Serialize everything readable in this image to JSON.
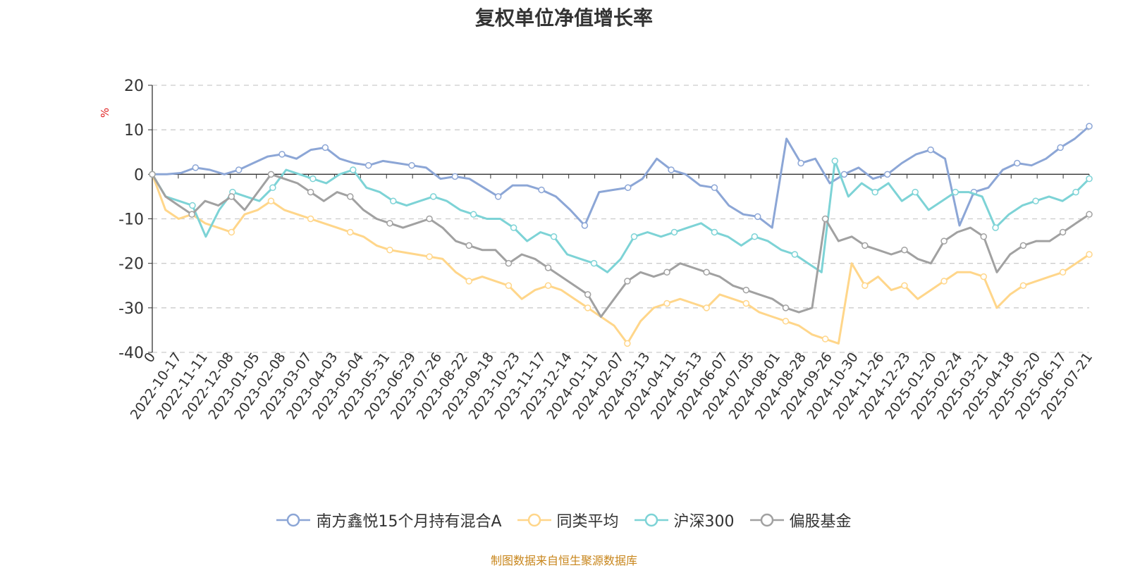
{
  "source_note": "制图数据来自恒生聚源数据库",
  "chart_data": {
    "type": "line",
    "title": "复权单位净值增长率",
    "ylabel": "%",
    "ylim": [
      -40,
      20
    ],
    "yticks": [
      20,
      10,
      0,
      -10,
      -20,
      -30,
      -40
    ],
    "grid": true,
    "legend": "bottom",
    "x_tick_labels": [
      "0",
      "2022-10-17",
      "2022-11-11",
      "2022-12-08",
      "2023-01-05",
      "2023-02-08",
      "2023-03-07",
      "2023-04-03",
      "2023-05-04",
      "2023-05-31",
      "2023-06-29",
      "2023-07-26",
      "2023-08-22",
      "2023-09-18",
      "2023-10-23",
      "2023-11-17",
      "2023-12-14",
      "2024-01-11",
      "2024-02-07",
      "2024-03-13",
      "2024-04-11",
      "2024-05-13",
      "2024-06-07",
      "2024-07-05",
      "2024-08-01",
      "2024-08-28",
      "2024-09-26",
      "2024-10-30",
      "2024-11-26",
      "2024-12-23",
      "2025-01-20",
      "2025-02-24",
      "2025-03-21",
      "2025-04-18",
      "2025-05-20",
      "2025-06-17",
      "2025-07-21"
    ],
    "series": [
      {
        "name": "南方鑫悦15个月持有混合A",
        "color": "#8ca6d6",
        "values": [
          0,
          0,
          0.3,
          1.5,
          1.0,
          0,
          1.0,
          2.5,
          4.0,
          4.5,
          3.5,
          5.5,
          6.0,
          3.5,
          2.5,
          2.0,
          3.0,
          2.5,
          2.0,
          1.5,
          -1.0,
          -0.5,
          -1.0,
          -3.0,
          -5.0,
          -2.5,
          -2.5,
          -3.5,
          -5.0,
          -8.0,
          -11.5,
          -4.0,
          -3.5,
          -3.0,
          -1.0,
          3.5,
          1.0,
          0,
          -2.5,
          -3.0,
          -7.0,
          -9.0,
          -9.5,
          -12.0,
          8.0,
          2.5,
          3.5,
          -2.0,
          0,
          1.5,
          -1.0,
          0,
          2.5,
          4.5,
          5.5,
          3.5,
          -11.5,
          -4.0,
          -3.0,
          1.0,
          2.5,
          2.0,
          3.5,
          6.0,
          8.0,
          10.8
        ]
      },
      {
        "name": "同类平均",
        "color": "#ffd68a",
        "values": [
          0,
          -8,
          -10,
          -9,
          -11,
          -12,
          -13,
          -9,
          -8,
          -6,
          -8,
          -9,
          -10,
          -11,
          -12,
          -13,
          -14,
          -16,
          -17,
          -17.5,
          -18,
          -18.5,
          -19,
          -22,
          -24,
          -23,
          -24,
          -25,
          -28,
          -26,
          -25,
          -26,
          -28,
          -30,
          -32,
          -34,
          -38,
          -33,
          -30,
          -29,
          -28,
          -29,
          -30,
          -27,
          -28,
          -29,
          -31,
          -32,
          -33,
          -34,
          -36,
          -37,
          -38,
          -20,
          -25,
          -23,
          -26,
          -25,
          -28,
          -26,
          -24,
          -22,
          -22,
          -23,
          -30,
          -27,
          -25,
          -24,
          -23,
          -22,
          -20,
          -18
        ]
      },
      {
        "name": "沪深300",
        "color": "#7dd3d6",
        "values": [
          0,
          -5,
          -6,
          -7,
          -14,
          -8,
          -4,
          -5,
          -6,
          -3,
          1,
          0,
          -1,
          -2,
          0,
          1,
          -3,
          -4,
          -6,
          -7,
          -6,
          -5,
          -6,
          -8,
          -9,
          -10,
          -10,
          -12,
          -15,
          -13,
          -14,
          -18,
          -19,
          -20,
          -22,
          -19,
          -14,
          -13,
          -14,
          -13,
          -12,
          -11,
          -13,
          -14,
          -16,
          -14,
          -15,
          -17,
          -18,
          -20,
          -22,
          3,
          -5,
          -2,
          -4,
          -2,
          -6,
          -4,
          -8,
          -6,
          -4,
          -4,
          -5,
          -12,
          -9,
          -7,
          -6,
          -5,
          -6,
          -4,
          -1
        ]
      },
      {
        "name": "偏股基金",
        "color": "#a1a1a1",
        "values": [
          0,
          -5,
          -7,
          -9,
          -6,
          -7,
          -5,
          -8,
          -4,
          0,
          -1,
          -2,
          -4,
          -6,
          -4,
          -5,
          -8,
          -10,
          -11,
          -12,
          -11,
          -10,
          -12,
          -15,
          -16,
          -17,
          -17,
          -20,
          -18,
          -19,
          -21,
          -23,
          -25,
          -27,
          -32,
          -28,
          -24,
          -22,
          -23,
          -22,
          -20,
          -21,
          -22,
          -23,
          -25,
          -26,
          -27,
          -28,
          -30,
          -31,
          -30,
          -10,
          -15,
          -14,
          -16,
          -17,
          -18,
          -17,
          -19,
          -20,
          -15,
          -13,
          -12,
          -14,
          -22,
          -18,
          -16,
          -15,
          -15,
          -13,
          -11,
          -9
        ]
      }
    ]
  }
}
